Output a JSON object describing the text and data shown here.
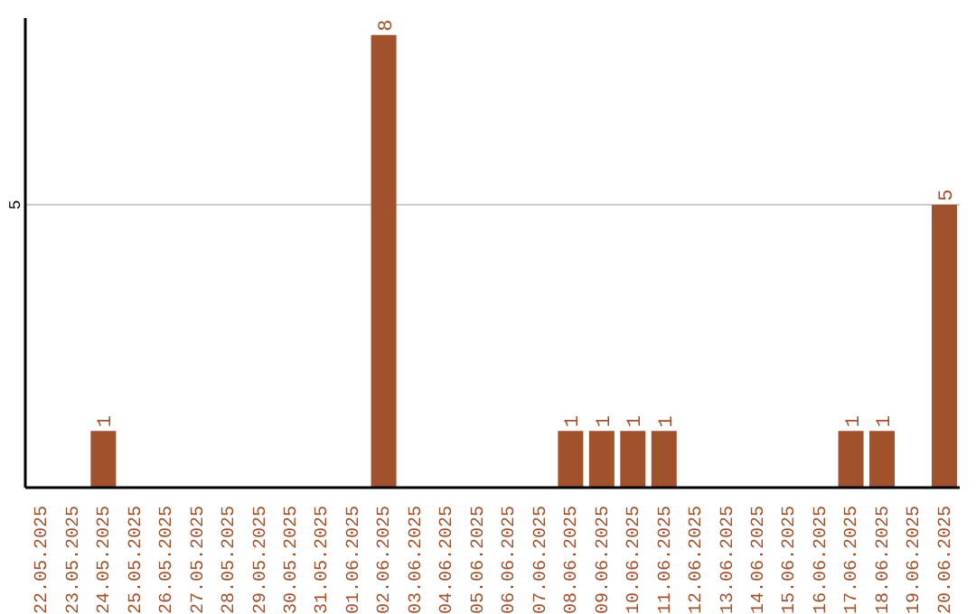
{
  "chart_data": {
    "type": "bar",
    "categories": [
      "22.05.2025",
      "23.05.2025",
      "24.05.2025",
      "25.05.2025",
      "26.05.2025",
      "27.05.2025",
      "28.05.2025",
      "29.05.2025",
      "30.05.2025",
      "31.05.2025",
      "01.06.2025",
      "02.06.2025",
      "03.06.2025",
      "04.06.2025",
      "05.06.2025",
      "06.06.2025",
      "07.06.2025",
      "08.06.2025",
      "09.06.2025",
      "10.06.2025",
      "11.06.2025",
      "12.06.2025",
      "13.06.2025",
      "14.06.2025",
      "15.06.2025",
      "16.06.2025",
      "17.06.2025",
      "18.06.2025",
      "19.06.2025",
      "20.06.2025"
    ],
    "values": [
      0,
      0,
      1,
      0,
      0,
      0,
      0,
      0,
      0,
      0,
      0,
      8,
      0,
      0,
      0,
      0,
      0,
      1,
      1,
      1,
      1,
      0,
      0,
      0,
      0,
      0,
      1,
      1,
      0,
      5
    ],
    "value_labels": [
      null,
      null,
      "1",
      null,
      null,
      null,
      null,
      null,
      null,
      null,
      null,
      "8",
      null,
      null,
      null,
      null,
      null,
      "1",
      "1",
      "1",
      "1",
      null,
      null,
      null,
      null,
      null,
      "1",
      "1",
      null,
      "5"
    ],
    "color": "#a0522d",
    "ylim": [
      0,
      8.3
    ],
    "yticks": [
      5
    ],
    "grid": "y"
  }
}
